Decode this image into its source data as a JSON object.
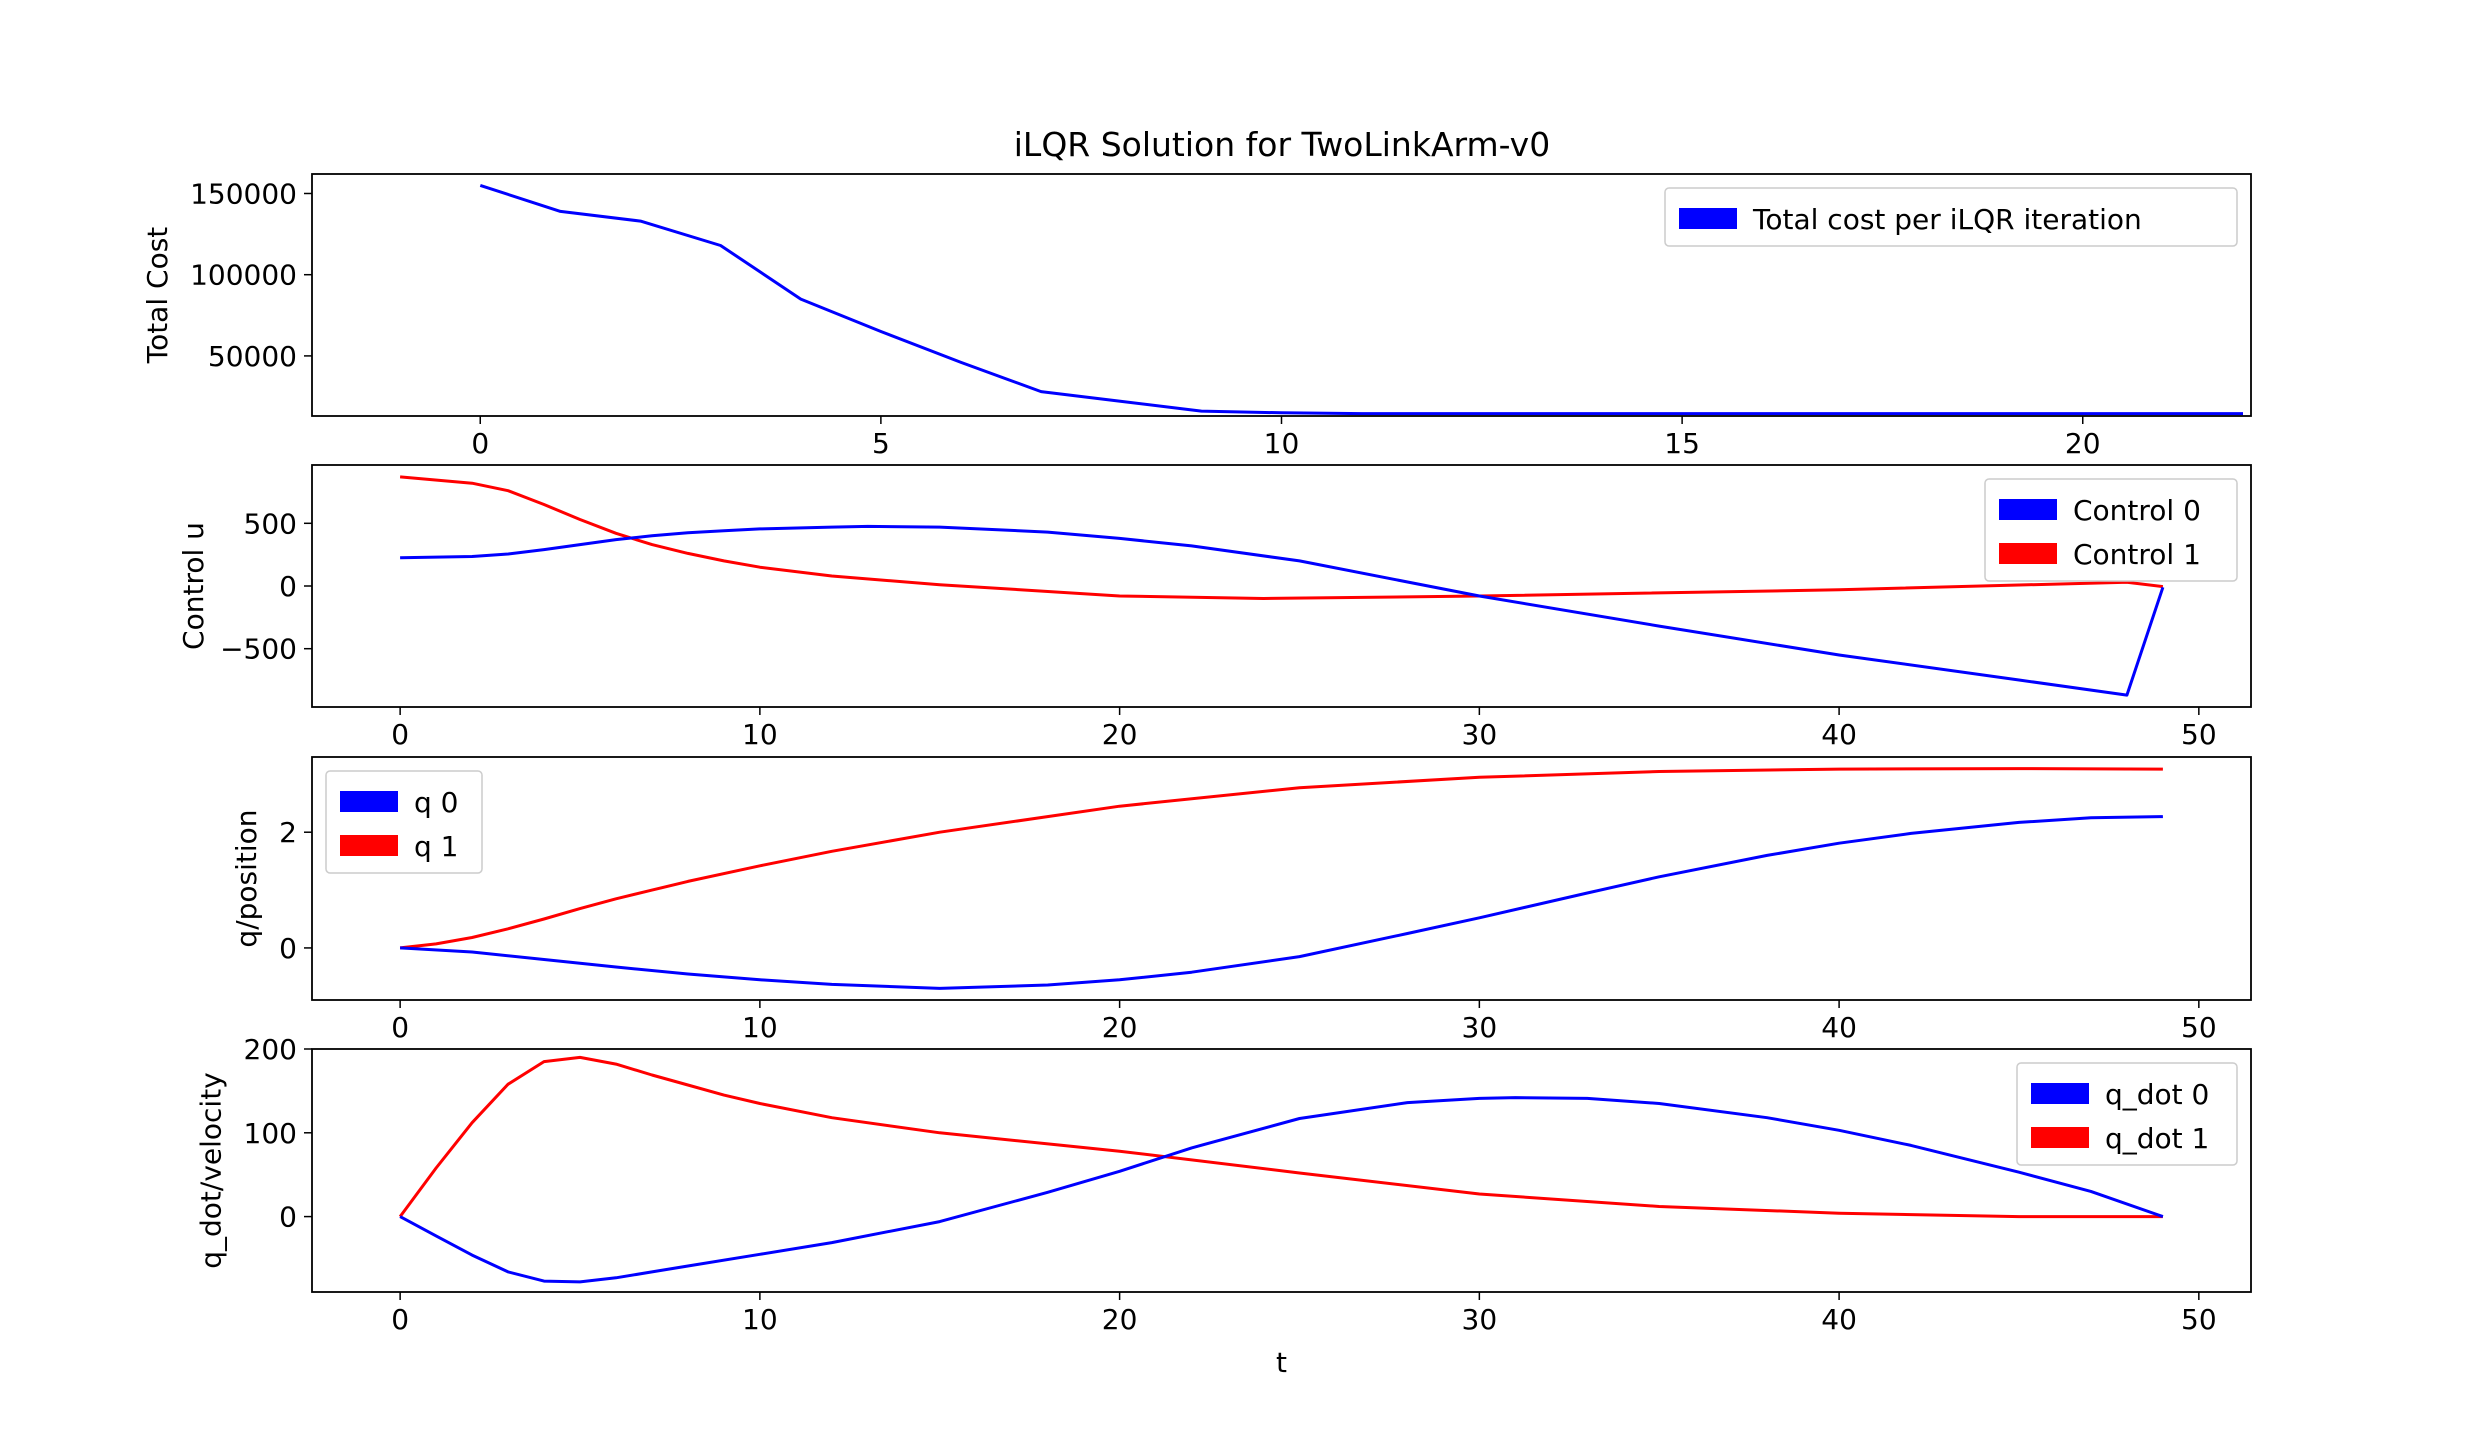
{
  "title": "iLQR Solution for TwoLinkArm-v0",
  "colors": {
    "red": "#ff0000",
    "blue": "#0000ff"
  },
  "chart_data": [
    {
      "type": "line",
      "ylabel": "Total Cost",
      "xlabel": "",
      "xlim": [
        -2.1,
        22.1
      ],
      "ylim": [
        13000,
        162000
      ],
      "xticks": [
        0,
        5,
        10,
        15,
        20
      ],
      "yticks": [
        50000,
        100000,
        150000
      ],
      "legend": "top-right",
      "series": [
        {
          "name": "Total cost per iLQR iteration",
          "color": "#0000ff",
          "x": [
            0,
            1,
            2,
            3,
            4,
            5,
            6,
            7,
            8,
            9,
            10,
            11,
            12,
            13,
            14,
            15,
            16,
            17,
            18,
            19,
            20,
            21,
            22
          ],
          "y": [
            155000,
            139000,
            133000,
            118000,
            85000,
            65000,
            46000,
            28000,
            22000,
            16000,
            15000,
            14500,
            14500,
            14500,
            14500,
            14500,
            14500,
            14500,
            14500,
            14500,
            14500,
            14500,
            14500
          ]
        }
      ]
    },
    {
      "type": "line",
      "ylabel": "Control u",
      "xlabel": "",
      "xlim": [
        -2.45,
        51.45
      ],
      "ylim": [
        -965,
        965
      ],
      "xticks": [
        0,
        10,
        20,
        30,
        40,
        50
      ],
      "yticks": [
        -500,
        0,
        500
      ],
      "legend": "top-right",
      "series": [
        {
          "name": "Control 1",
          "color": "#ff0000",
          "x": [
            0,
            2,
            3,
            4,
            5,
            6,
            7,
            8,
            9,
            10,
            12,
            15,
            20,
            24,
            30,
            40,
            48,
            49
          ],
          "y": [
            870,
            820,
            760,
            650,
            530,
            420,
            330,
            260,
            200,
            150,
            80,
            10,
            -80,
            -100,
            -80,
            -30,
            30,
            -5
          ]
        },
        {
          "name": "Control 0",
          "color": "#0000ff",
          "x": [
            0,
            2,
            3,
            4,
            5,
            6,
            7,
            8,
            9,
            10,
            12,
            13,
            15,
            18,
            20,
            22,
            25,
            30,
            35,
            40,
            45,
            48,
            49
          ],
          "y": [
            225,
            235,
            255,
            290,
            330,
            370,
            400,
            425,
            440,
            455,
            470,
            475,
            470,
            430,
            380,
            320,
            200,
            -80,
            -320,
            -550,
            -750,
            -870,
            -10
          ]
        }
      ]
    },
    {
      "type": "line",
      "ylabel": "q/position",
      "xlabel": "",
      "xlim": [
        -2.45,
        51.45
      ],
      "ylim": [
        -0.9,
        3.3
      ],
      "xticks": [
        0,
        10,
        20,
        30,
        40,
        50
      ],
      "yticks": [
        0,
        2
      ],
      "legend": "top-left",
      "series": [
        {
          "name": "q 1",
          "color": "#ff0000",
          "x": [
            0,
            1,
            2,
            3,
            4,
            5,
            6,
            7,
            8,
            10,
            12,
            15,
            20,
            25,
            30,
            35,
            40,
            45,
            49
          ],
          "y": [
            0,
            0.07,
            0.18,
            0.33,
            0.5,
            0.68,
            0.85,
            1.0,
            1.15,
            1.42,
            1.67,
            2.0,
            2.45,
            2.77,
            2.95,
            3.05,
            3.09,
            3.1,
            3.09
          ]
        },
        {
          "name": "q 0",
          "color": "#0000ff",
          "x": [
            0,
            2,
            4,
            6,
            8,
            10,
            12,
            15,
            18,
            20,
            22,
            25,
            28,
            30,
            33,
            35,
            38,
            40,
            42,
            45,
            47,
            49
          ],
          "y": [
            0,
            -0.07,
            -0.2,
            -0.33,
            -0.45,
            -0.55,
            -0.63,
            -0.7,
            -0.64,
            -0.55,
            -0.42,
            -0.15,
            0.25,
            0.52,
            0.95,
            1.23,
            1.6,
            1.81,
            1.98,
            2.17,
            2.25,
            2.27
          ]
        }
      ]
    },
    {
      "type": "line",
      "ylabel": "q_dot/velocity",
      "xlabel": "t",
      "xlim": [
        -2.45,
        51.45
      ],
      "ylim": [
        -90,
        200
      ],
      "xticks": [
        0,
        10,
        20,
        30,
        40,
        50
      ],
      "yticks": [
        0,
        100,
        200
      ],
      "legend": "top-right",
      "series": [
        {
          "name": "q_dot 1",
          "color": "#ff0000",
          "x": [
            0,
            1,
            2,
            3,
            4,
            5,
            6,
            7,
            8,
            9,
            10,
            12,
            15,
            20,
            25,
            30,
            35,
            40,
            45,
            49
          ],
          "y": [
            0,
            58,
            112,
            158,
            185,
            190,
            182,
            169,
            157,
            145,
            135,
            118,
            100,
            78,
            52,
            27,
            12,
            4,
            0,
            0
          ]
        },
        {
          "name": "q_dot 0",
          "color": "#0000ff",
          "x": [
            0,
            1,
            2,
            3,
            4,
            5,
            6,
            7,
            8,
            10,
            12,
            15,
            18,
            20,
            22,
            25,
            28,
            30,
            31,
            33,
            35,
            38,
            40,
            42,
            45,
            47,
            49
          ],
          "y": [
            0,
            -23,
            -46,
            -66,
            -77,
            -78,
            -73,
            -66,
            -59,
            -45,
            -31,
            -6,
            29,
            54,
            82,
            117,
            136,
            141,
            142,
            141,
            135,
            118,
            103,
            85,
            53,
            30,
            0
          ]
        }
      ]
    }
  ]
}
